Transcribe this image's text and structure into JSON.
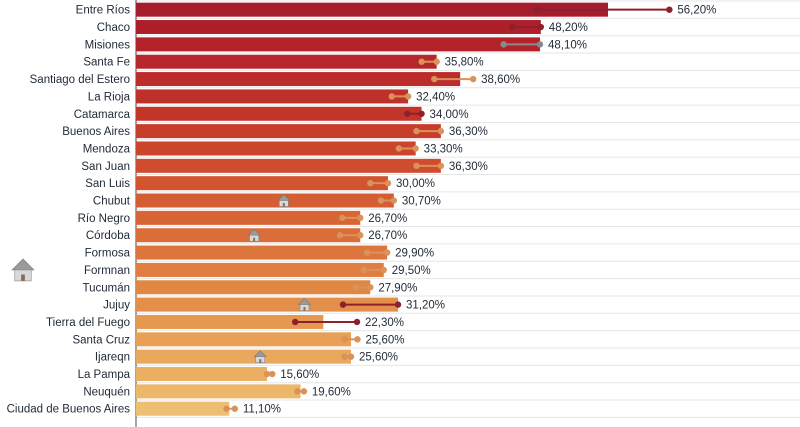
{
  "chart_data": {
    "type": "bar",
    "orientation": "horizontal",
    "grid": true,
    "legend": "none",
    "categories": [
      "Entre Ríos",
      "Chaco",
      "Misiones",
      "Santa Fe",
      "Santiago del Estero",
      "La Rioja",
      "Catamarca",
      "Buenos Aires",
      "Mendoza",
      "San Juan",
      "San Luis",
      "Chubut",
      "Río Negro",
      "Córdoba",
      "Formosa",
      "Formnan",
      "Tucumán",
      "Jujuy",
      "Tierra del Fuego",
      "Santa Cruz",
      "Ijareqn",
      "La Pampa",
      "Neuquén",
      "Ciudad de Buenos Aires"
    ],
    "values": [
      56.2,
      48.2,
      48.1,
      35.8,
      38.6,
      32.4,
      34.0,
      36.3,
      33.3,
      36.3,
      30.0,
      30.7,
      26.7,
      26.7,
      29.9,
      29.5,
      27.9,
      31.2,
      22.3,
      25.6,
      25.6,
      15.6,
      19.6,
      11.1
    ],
    "value_labels": [
      "56,20%",
      "48,20%",
      "48,10%",
      "35,80%",
      "38,60%",
      "32,40%",
      "34,00%",
      "36,30%",
      "33,30%",
      "36,30%",
      "30,00%",
      "30,70%",
      "26,70%",
      "26,70%",
      "29,90%",
      "29,50%",
      "27,90%",
      "31,20%",
      "22,30%",
      "25,60%",
      "25,60%",
      "15,60%",
      "19,60%",
      "11,10%"
    ],
    "bar_colors": [
      "#a51c2c",
      "#ad1f2b",
      "#b3222a",
      "#b6262a",
      "#bb2c2a",
      "#be302a",
      "#c2362a",
      "#c73d2b",
      "#cb452c",
      "#cf4d2e",
      "#d25530",
      "#d55d33",
      "#d86635",
      "#db6e38",
      "#dd763c",
      "#df7e40",
      "#e18744",
      "#e38f49",
      "#e5984f",
      "#e7a055",
      "#e9a85c",
      "#ebaf63",
      "#ecb76a",
      "#eebe72"
    ],
    "marker_color": "#d9925a",
    "marker_color_dark": "#8e1f2b",
    "marker_color_gray": "#8a8a8a",
    "range_lines": [
      {
        "from": 0.85,
        "to": 1.13,
        "style": "dark"
      },
      {
        "from": 0.93,
        "to": 1.0,
        "style": "dark"
      },
      {
        "from": 0.91,
        "to": 1.0,
        "style": "gray"
      },
      {
        "from": 0.95,
        "to": 1.0,
        "style": "light"
      },
      {
        "from": 0.92,
        "to": 1.04,
        "style": "light"
      },
      {
        "from": 0.94,
        "to": 1.0,
        "style": "light"
      },
      {
        "from": 0.95,
        "to": 1.0,
        "style": "dark"
      },
      {
        "from": 0.92,
        "to": 1.0,
        "style": "light"
      },
      {
        "from": 0.94,
        "to": 1.0,
        "style": "light"
      },
      {
        "from": 0.92,
        "to": 1.0,
        "style": "light"
      },
      {
        "from": 0.93,
        "to": 1.0,
        "style": "light"
      },
      {
        "from": 0.95,
        "to": 1.0,
        "style": "light"
      },
      {
        "from": 0.92,
        "to": 1.0,
        "style": "light"
      },
      {
        "from": 0.91,
        "to": 1.0,
        "style": "light"
      },
      {
        "from": 0.92,
        "to": 1.0,
        "style": "light"
      },
      {
        "from": 0.92,
        "to": 1.0,
        "style": "light"
      },
      {
        "from": 0.94,
        "to": 1.0,
        "style": "light"
      },
      {
        "from": 0.79,
        "to": 1.0,
        "style": "dark"
      },
      {
        "from": 0.85,
        "to": 1.18,
        "style": "dark"
      },
      {
        "from": 0.97,
        "to": 1.03,
        "style": "light"
      },
      {
        "from": 0.97,
        "to": 1.0,
        "style": "light"
      },
      {
        "from": 1.0,
        "to": 1.04,
        "style": "light"
      },
      {
        "from": 0.98,
        "to": 1.02,
        "style": "light"
      },
      {
        "from": 0.97,
        "to": 1.06,
        "style": "light"
      }
    ],
    "house_icons": [
      {
        "row": 11,
        "name": "house-icon"
      },
      {
        "row": 13,
        "name": "house-icon"
      },
      {
        "row": 15,
        "name": "house-icon"
      },
      {
        "row": 17,
        "name": "house-icon"
      },
      {
        "row": 20,
        "name": "house-icon"
      }
    ],
    "xlim": [
      0,
      56.2
    ]
  }
}
